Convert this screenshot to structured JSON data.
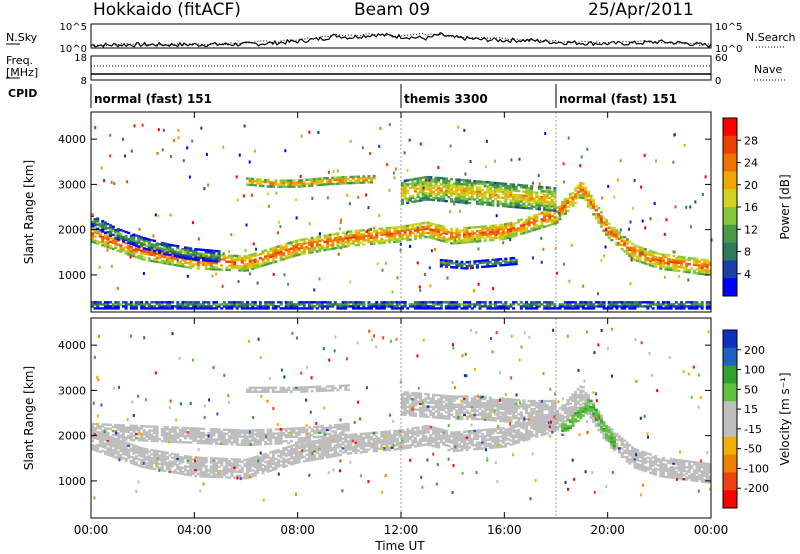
{
  "header": {
    "station": "Hokkaido (fitACF)",
    "beam": "Beam 09",
    "date": "25/Apr/2011"
  },
  "side_labels": {
    "nsky": "N.Sky",
    "nsearch": "N.Search",
    "freq": "Freq.",
    "freq_unit": "[MHz]",
    "nave": "Nave",
    "cpid": "CPID"
  },
  "colors": {
    "power_scale": [
      "#0000ff",
      "#1a3fa8",
      "#2f7a5a",
      "#4a9a4a",
      "#86c83a",
      "#d4d020",
      "#f0a800",
      "#f07000",
      "#f04000",
      "#ff0000"
    ],
    "velocity_scale": [
      "#1030c0",
      "#2060c0",
      "#30a030",
      "#60c040",
      "#bebebe",
      "#bebebe",
      "#f0b000",
      "#f08000",
      "#f04010",
      "#ff0000"
    ],
    "ground_scatter": "#bebebe",
    "noise_line": "#000000"
  },
  "chart_data": [
    {
      "type": "line",
      "name": "noise-panel",
      "title": "",
      "y_ticks_left": [
        "10^5",
        "10^0"
      ],
      "y_ticks_right": [
        "10^5",
        "10^0"
      ],
      "x_range_hours": [
        0,
        24
      ],
      "series": [
        {
          "name": "N.Sky",
          "x": [
            0,
            2,
            4,
            6,
            7,
            8,
            9,
            9.5,
            10,
            11,
            12,
            13,
            13.5,
            14,
            15,
            16,
            17,
            18,
            20,
            21,
            22,
            23,
            24
          ],
          "values": [
            0.6,
            0.7,
            0.7,
            0.8,
            1.0,
            1.4,
            2.0,
            2.6,
            2.2,
            2.8,
            2.4,
            2.0,
            2.8,
            2.2,
            1.8,
            1.6,
            1.6,
            1.2,
            0.9,
            1.0,
            1.3,
            1.0,
            0.5
          ]
        },
        {
          "name": "N.Search",
          "x": [
            0,
            4,
            8,
            9.5,
            10,
            11,
            12,
            13.5,
            14,
            16,
            18,
            20,
            21,
            22,
            24
          ],
          "values": [
            0.7,
            0.8,
            1.5,
            2.9,
            2.5,
            3.0,
            2.6,
            3.1,
            2.4,
            1.9,
            1.4,
            1.1,
            1.5,
            1.2,
            0.6
          ]
        }
      ]
    },
    {
      "type": "line",
      "name": "frequency-nave-panel",
      "title": "",
      "y_ticks_left": [
        "18",
        "8"
      ],
      "y_ticks_right": [
        "60",
        "0"
      ],
      "ylim_left": [
        8,
        18
      ],
      "ylim_right": [
        0,
        60
      ],
      "series": [
        {
          "name": "Freq.",
          "x": [
            0,
            24
          ],
          "values": [
            10.5,
            10.5
          ]
        },
        {
          "name": "Nave",
          "x": [
            0,
            24
          ],
          "values": [
            35,
            35
          ]
        }
      ]
    },
    {
      "type": "table",
      "name": "cpid-panel",
      "segments": [
        {
          "label": "normal (fast) 151",
          "start_hour": 0,
          "end_hour": 12
        },
        {
          "label": "themis 3300",
          "start_hour": 12,
          "end_hour": 18
        },
        {
          "label": "normal (fast) 151",
          "start_hour": 18,
          "end_hour": 24
        }
      ]
    },
    {
      "type": "heatmap",
      "name": "power-panel",
      "ylabel": "Slant Range [km]",
      "y_ticks": [
        "1000",
        "2000",
        "3000",
        "4000"
      ],
      "ylim": [
        180,
        4600
      ],
      "x_range_hours": [
        0,
        24
      ],
      "colorbar": {
        "label": "Power [dB]",
        "ticks": [
          "4",
          "8",
          "12",
          "16",
          "20",
          "24",
          "28"
        ],
        "range": [
          0,
          32
        ]
      },
      "bands": [
        {
          "x": [
            0,
            2,
            4,
            6,
            8,
            10,
            12,
            13,
            14,
            16,
            18,
            19,
            20,
            21,
            22,
            24
          ],
          "y": [
            1900,
            1500,
            1300,
            1250,
            1600,
            1800,
            1900,
            2000,
            1850,
            1950,
            2300,
            2900,
            2000,
            1500,
            1300,
            1150
          ],
          "width": 350,
          "value": 27
        },
        {
          "x": [
            0,
            1,
            2,
            3,
            4,
            5
          ],
          "y": [
            2200,
            1900,
            1700,
            1550,
            1450,
            1400
          ],
          "width": 250,
          "value": 13
        },
        {
          "x": [
            6,
            7,
            8,
            9,
            10,
            11
          ],
          "y": [
            3050,
            3000,
            3000,
            3050,
            3080,
            3100
          ],
          "width": 140,
          "value": 26
        },
        {
          "x": [
            12,
            13,
            14,
            15,
            16,
            17,
            18
          ],
          "y": [
            2800,
            2900,
            2850,
            2800,
            2750,
            2700,
            2650
          ],
          "width": 500,
          "value": 22
        },
        {
          "x": [
            13.5,
            14.5,
            15.5,
            16.5
          ],
          "y": [
            1250,
            1200,
            1250,
            1300
          ],
          "width": 150,
          "value": 12
        },
        {
          "x": [
            0,
            4,
            8,
            12,
            16,
            20,
            24
          ],
          "y": [
            330,
            330,
            330,
            330,
            330,
            330,
            330
          ],
          "width": 180,
          "value": 10
        }
      ]
    },
    {
      "type": "heatmap",
      "name": "velocity-panel",
      "ylabel": "Slant Range [km]",
      "y_ticks": [
        "1000",
        "2000",
        "3000",
        "4000"
      ],
      "ylim": [
        180,
        4600
      ],
      "x_range_hours": [
        0,
        24
      ],
      "xlabel": "Time UT",
      "x_ticks": [
        "00:00",
        "04:00",
        "08:00",
        "12:00",
        "16:00",
        "20:00",
        "00:00"
      ],
      "x_tick_hours": [
        0,
        4,
        8,
        12,
        16,
        20,
        24
      ],
      "colorbar": {
        "label": "Velocity [m s⁻¹]",
        "ticks": [
          "200",
          "100",
          "50",
          "15",
          "-15",
          "-50",
          "-100",
          "-200"
        ]
      },
      "bands": [
        {
          "x": [
            0,
            2,
            4,
            6,
            8,
            10,
            12,
            13,
            14,
            16,
            18,
            19,
            20,
            21,
            22,
            24
          ],
          "y": [
            1900,
            1500,
            1300,
            1250,
            1600,
            1800,
            1900,
            2000,
            1850,
            1950,
            2300,
            2900,
            2000,
            1500,
            1300,
            1150
          ],
          "width": 420,
          "value": 0
        },
        {
          "x": [
            0,
            2,
            4,
            6,
            8,
            10
          ],
          "y": [
            2100,
            2050,
            2000,
            1950,
            2000,
            2100
          ],
          "width": 350,
          "value": 0
        },
        {
          "x": [
            12,
            13,
            14,
            15,
            16,
            17,
            18
          ],
          "y": [
            2700,
            2650,
            2600,
            2600,
            2550,
            2500,
            2500
          ],
          "width": 500,
          "value": 0
        },
        {
          "x": [
            18.2,
            18.8,
            19.3,
            19.8,
            20.3
          ],
          "y": [
            2100,
            2400,
            2700,
            2200,
            1800
          ],
          "width": 250,
          "value": 60
        },
        {
          "x": [
            6,
            8,
            10
          ],
          "y": [
            3000,
            3000,
            3050
          ],
          "width": 100,
          "value": 0
        }
      ]
    }
  ]
}
